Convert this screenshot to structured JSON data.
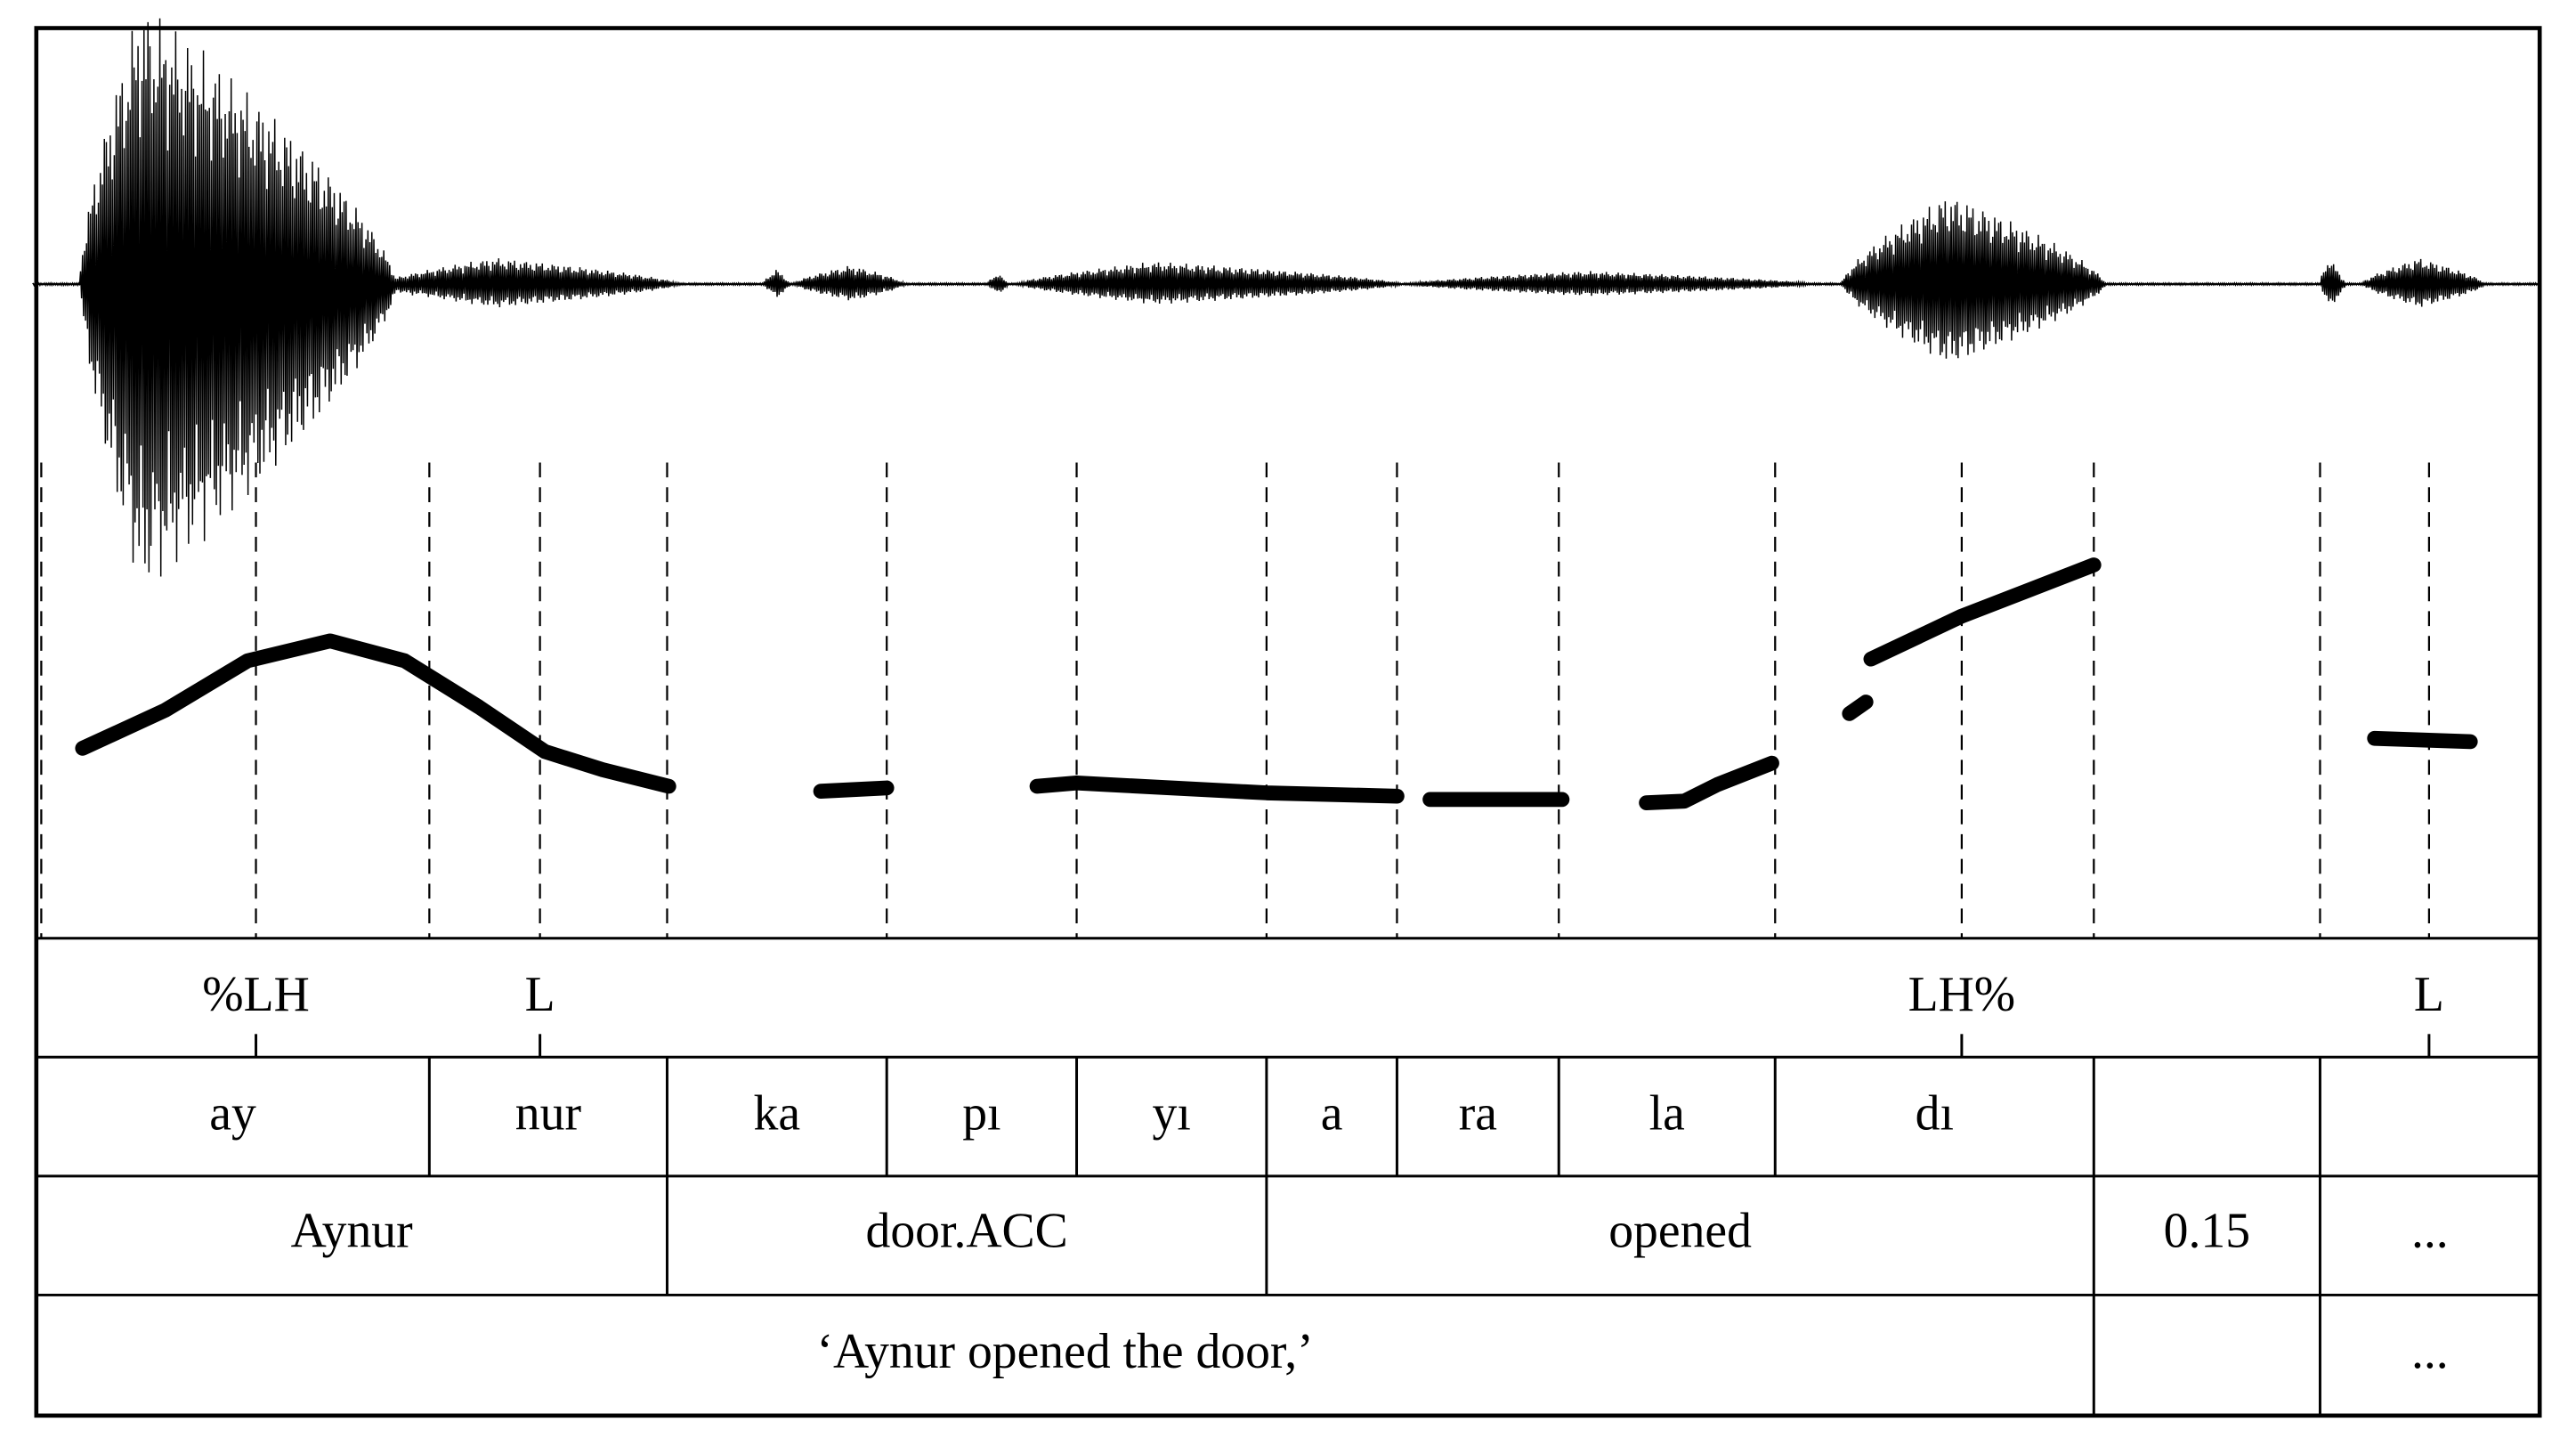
{
  "tones": [
    "%LH",
    "L",
    "LH%",
    "L"
  ],
  "syllables": [
    "ay",
    "nur",
    "ka",
    "pı",
    "yı",
    "a",
    "ra",
    "la",
    "dı"
  ],
  "words": [
    "Aynur",
    "door.ACC",
    "opened",
    "0.15",
    "..."
  ],
  "translation": [
    "‘Aynur opened the door,’",
    "..."
  ]
}
